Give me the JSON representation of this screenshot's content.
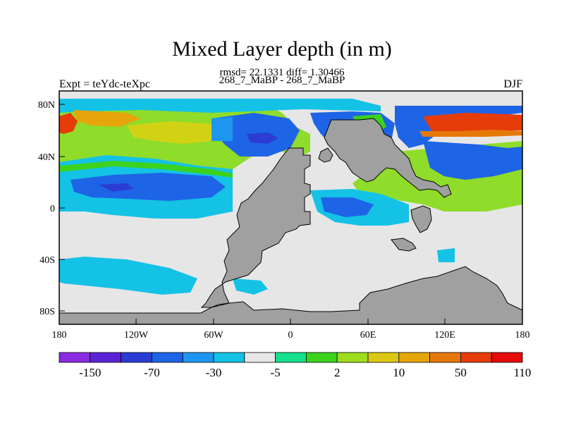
{
  "title": "Mixed Layer depth (in m)",
  "stats_line": "rmsd= 22.1331 diff= 1.30466",
  "subtitle": "268_7_MaBP - 268_7_MaBP",
  "left_label": "Expt = teYdc-teXpc",
  "right_label": "DJF",
  "map": {
    "x_ticks": [
      "180",
      "120W",
      "60W",
      "0",
      "60E",
      "120E",
      "180"
    ],
    "y_ticks": [
      "80N",
      "40N",
      "0",
      "40S",
      "80S"
    ],
    "land_color": "#a0a0a0",
    "ocean_neutral_color": "#e6e6e6"
  },
  "colorbar": {
    "colors": [
      "#8a2be2",
      "#5a23d6",
      "#2a3cd4",
      "#1e64e6",
      "#1e96f0",
      "#14c2e6",
      "#e6e6e6",
      "#14e08c",
      "#3cd21e",
      "#a0dc1e",
      "#dcc814",
      "#e6a50a",
      "#e6780a",
      "#e63c0a",
      "#e60a0a"
    ],
    "labels": [
      "-150",
      "-70",
      "-30",
      "-5",
      "2",
      "10",
      "50",
      "110"
    ]
  }
}
